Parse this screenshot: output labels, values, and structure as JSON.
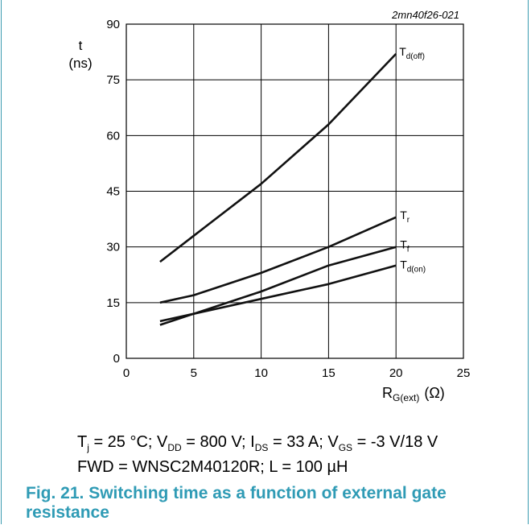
{
  "figure": {
    "id_label": "2mn40f26-021",
    "conditions_line1": {
      "parts": [
        {
          "t": "T",
          "sub": "j"
        },
        {
          "t": " = 25 °C; V",
          "sub": "DD"
        },
        {
          "t": " = 800 V; I",
          "sub": "DS"
        },
        {
          "t": " = 33 A; V",
          "sub": "GS"
        },
        {
          "t": " = -3 V/18 V",
          "sub": ""
        }
      ]
    },
    "conditions_line2": "FWD = WNSC2M40120R; L = 100 µH",
    "caption_number": "Fig. 21.",
    "caption_text": "Switching time as a function of external gate resistance"
  },
  "chart_data": {
    "type": "line",
    "ylabel_line1": "t",
    "ylabel_line2": "(ns)",
    "xlabel_main": "R",
    "xlabel_sub": "G(ext)",
    "xlabel_unit": "(Ω)",
    "xlim": [
      0,
      25
    ],
    "ylim": [
      0,
      90
    ],
    "x_ticks": [
      0,
      5,
      10,
      15,
      20,
      25
    ],
    "y_ticks": [
      0,
      15,
      30,
      45,
      60,
      75,
      90
    ],
    "grid": true,
    "series": [
      {
        "name_main": "T",
        "name_sub": "d(off)",
        "x": [
          2.5,
          5,
          10,
          15,
          20
        ],
        "values": [
          26,
          33,
          47,
          63,
          82
        ]
      },
      {
        "name_main": "T",
        "name_sub": "r",
        "x": [
          2.5,
          5,
          10,
          15,
          20
        ],
        "values": [
          15,
          17,
          23,
          30,
          38
        ]
      },
      {
        "name_main": "T",
        "name_sub": "f",
        "x": [
          2.5,
          5,
          10,
          15,
          20
        ],
        "values": [
          9,
          12,
          18,
          25,
          30
        ]
      },
      {
        "name_main": "T",
        "name_sub": "d(on)",
        "x": [
          2.5,
          5,
          10,
          15,
          20
        ],
        "values": [
          10,
          12,
          16,
          20,
          25
        ]
      }
    ]
  }
}
